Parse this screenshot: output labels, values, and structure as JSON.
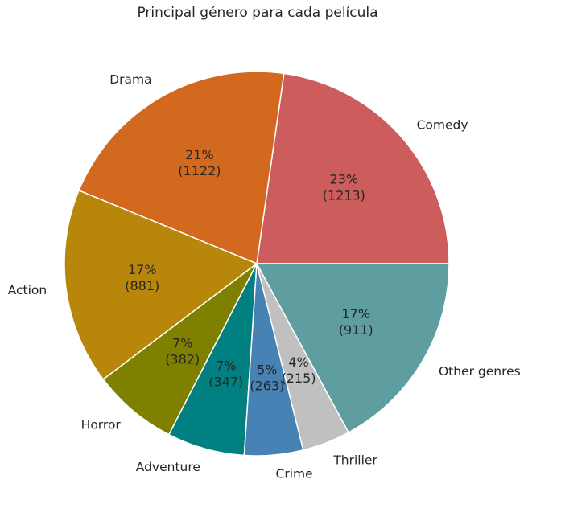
{
  "chart_data": {
    "type": "pie",
    "title": "Principal género para cada película",
    "start_angle_deg": 0,
    "direction": "counterclockwise",
    "slices": [
      {
        "label": "Comedy",
        "value": 1213,
        "pct_label": "23%",
        "count_label": "(1213)",
        "color": "#cd5c5c"
      },
      {
        "label": "Drama",
        "value": 1122,
        "pct_label": "21%",
        "count_label": "(1122)",
        "color": "#d2691e"
      },
      {
        "label": "Action",
        "value": 881,
        "pct_label": "17%",
        "count_label": "(881)",
        "color": "#b8860b"
      },
      {
        "label": "Horror",
        "value": 382,
        "pct_label": "7%",
        "count_label": "(382)",
        "color": "#808000"
      },
      {
        "label": "Adventure",
        "value": 347,
        "pct_label": "7%",
        "count_label": "(347)",
        "color": "#008080"
      },
      {
        "label": "Crime",
        "value": 263,
        "pct_label": "5%",
        "count_label": "(263)",
        "color": "#4682b4"
      },
      {
        "label": "Thriller",
        "value": 215,
        "pct_label": "4%",
        "count_label": "(215)",
        "color": "#c0c0c0"
      },
      {
        "label": "Other genres",
        "value": 911,
        "pct_label": "17%",
        "count_label": "(911)",
        "color": "#5f9ea0"
      }
    ]
  }
}
